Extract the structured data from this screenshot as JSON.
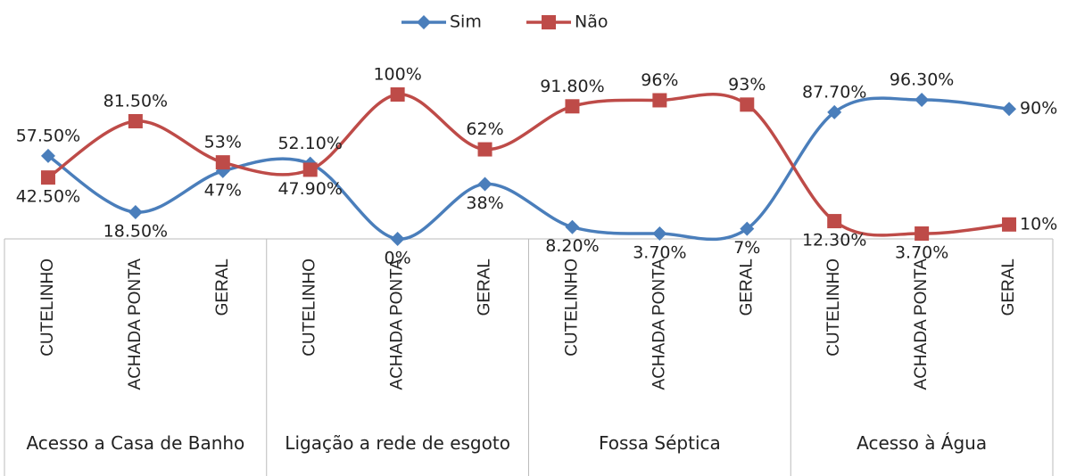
{
  "chart_data": {
    "type": "line",
    "categories": [
      "CUTELINHO",
      "ACHADA PONTA",
      "GERAL",
      "CUTELINHO",
      "ACHADA PONTA",
      "GERAL",
      "CUTELINHO",
      "ACHADA PONTA",
      "GERAL",
      "CUTELINHO",
      "ACHADA PONTA",
      "GERAL"
    ],
    "groups": [
      "Acesso a Casa de Banho",
      "Ligação a rede de esgoto",
      "Fossa Séptica",
      "Acesso à Água"
    ],
    "series": [
      {
        "name": "Sim",
        "color": "#4a7ebb",
        "marker": "diamond",
        "values": [
          57.5,
          18.5,
          47,
          52.1,
          0,
          38,
          8.2,
          3.7,
          7,
          87.7,
          96.3,
          90
        ],
        "value_labels": [
          "57.50%",
          "18.50%",
          "47%",
          "52.10%",
          "0%",
          "38%",
          "8.20%",
          "3.70%",
          "7%",
          "87.70%",
          "96.30%",
          "90%"
        ]
      },
      {
        "name": "Não",
        "color": "#be4b48",
        "marker": "square",
        "values": [
          42.5,
          81.5,
          53,
          47.9,
          100,
          62,
          91.8,
          96,
          93,
          12.3,
          3.7,
          10
        ],
        "value_labels": [
          "42.50%",
          "81.50%",
          "53%",
          "47.90%",
          "100%",
          "62%",
          "91.80%",
          "96%",
          "93%",
          "12.30%",
          "3.70%",
          "10%"
        ]
      }
    ],
    "ylim": [
      0,
      100
    ],
    "smooth": true,
    "legend": "top"
  }
}
